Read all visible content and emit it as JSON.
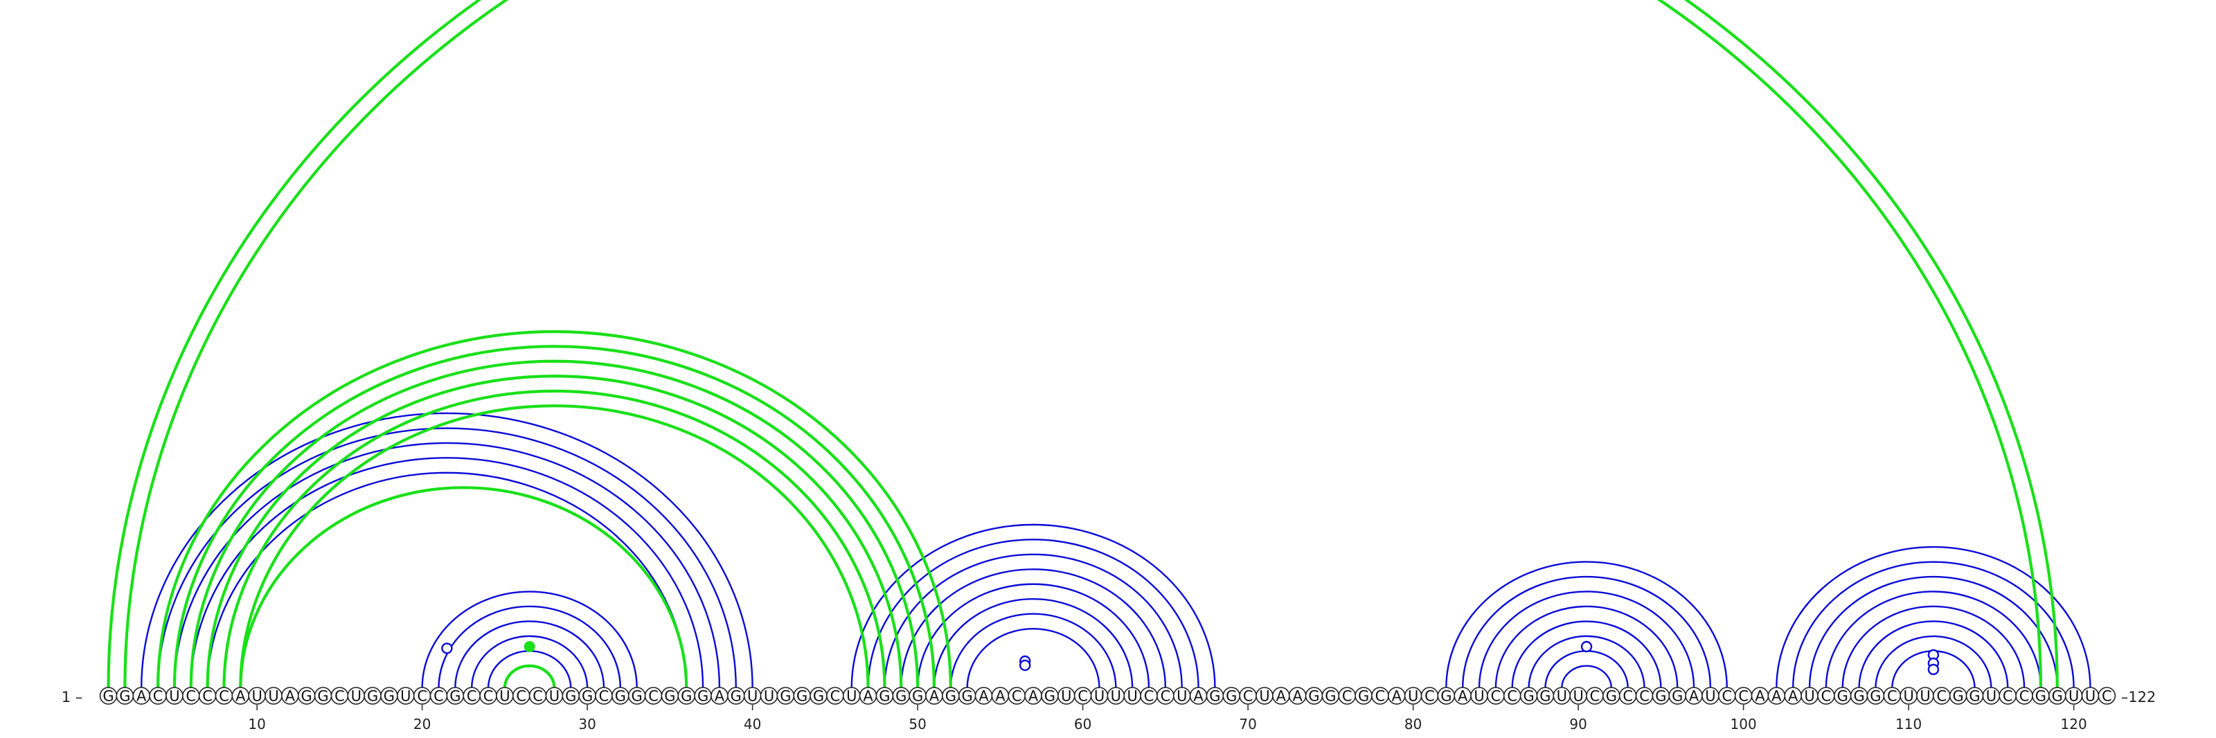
{
  "sequence": "GGACUCCCAUUAGGCUGGUCCGCCUCCUGGCGGCGGGAGUUGGGCUAGGGAGGAACAGUCUUUCCUAGGCUAAGGCGCAUCGAUCCGGUUCGCCGGAUCCAAAUCGGGCUUCGGUCCGGUUC",
  "labels": {
    "start": "1 –",
    "end": "–122"
  },
  "ticks": [
    10,
    20,
    30,
    40,
    50,
    60,
    70,
    80,
    90,
    100,
    110,
    120
  ],
  "colors": {
    "blue_arcs": "#0a0ad8",
    "green_arcs": "#19e019",
    "nucleotide_outline": "#222222"
  },
  "blue_arcs": [
    [
      3,
      40
    ],
    [
      4,
      39
    ],
    [
      5,
      38
    ],
    [
      6,
      37
    ],
    [
      7,
      36
    ],
    [
      20,
      33
    ],
    [
      21,
      32
    ],
    [
      22,
      31
    ],
    [
      23,
      30
    ],
    [
      24,
      29
    ],
    [
      25,
      28
    ],
    [
      46,
      68
    ],
    [
      47,
      67
    ],
    [
      48,
      66
    ],
    [
      49,
      65
    ],
    [
      50,
      64
    ],
    [
      51,
      63
    ],
    [
      52,
      62
    ],
    [
      53,
      61
    ],
    [
      82,
      99
    ],
    [
      83,
      98
    ],
    [
      84,
      97
    ],
    [
      85,
      96
    ],
    [
      86,
      95
    ],
    [
      87,
      94
    ],
    [
      88,
      93
    ],
    [
      89,
      92
    ],
    [
      102,
      121
    ],
    [
      103,
      120
    ],
    [
      104,
      119
    ],
    [
      105,
      118
    ],
    [
      106,
      117
    ],
    [
      107,
      116
    ],
    [
      108,
      115
    ],
    [
      109,
      114
    ]
  ],
  "green_arcs": [
    [
      1,
      119
    ],
    [
      2,
      118
    ],
    [
      4,
      52
    ],
    [
      5,
      51
    ],
    [
      6,
      50
    ],
    [
      7,
      49
    ],
    [
      8,
      48
    ],
    [
      9,
      47
    ],
    [
      9,
      36
    ],
    [
      25,
      28
    ]
  ],
  "markers": [
    {
      "pos": 21.5,
      "height": 0.96,
      "arc": "blue",
      "filled": false
    },
    {
      "pos": 26.5,
      "height": 1.0,
      "arc": "green",
      "filled": true
    },
    {
      "pos": 56.5,
      "height": 0.65,
      "arc": "blue",
      "filled": false
    },
    {
      "pos": 56.5,
      "height": 0.55,
      "arc": "blue",
      "filled": false
    },
    {
      "pos": 90.5,
      "height": 1.0,
      "arc": "blue",
      "filled": false
    },
    {
      "pos": 111.5,
      "height": 0.8,
      "arc": "blue",
      "filled": false
    },
    {
      "pos": 111.5,
      "height": 0.6,
      "arc": "blue",
      "filled": false
    },
    {
      "pos": 111.5,
      "height": 0.45,
      "arc": "blue",
      "filled": false
    }
  ]
}
